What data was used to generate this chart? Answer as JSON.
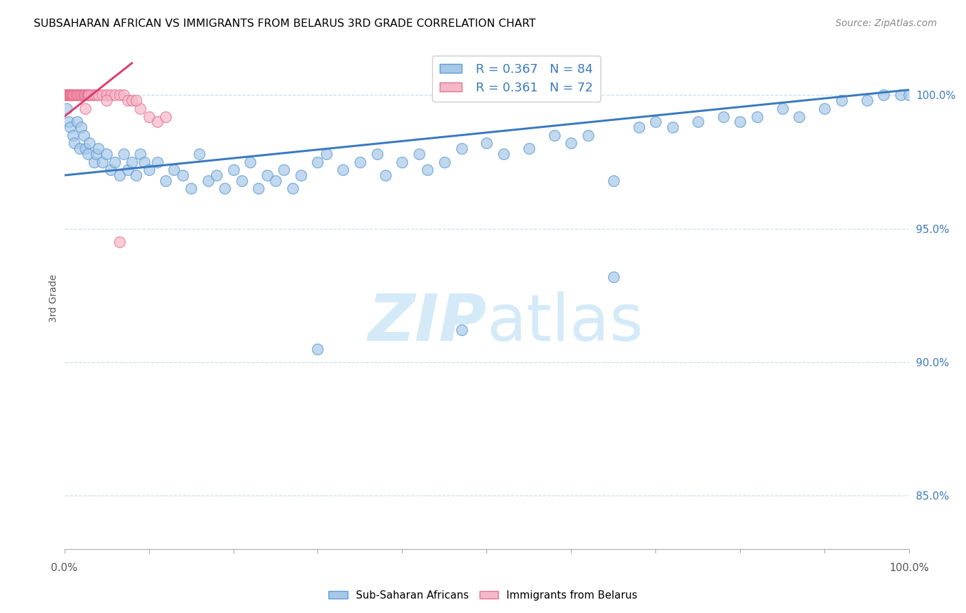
{
  "title": "SUBSAHARAN AFRICAN VS IMMIGRANTS FROM BELARUS 3RD GRADE CORRELATION CHART",
  "source": "Source: ZipAtlas.com",
  "ylabel": "3rd Grade",
  "xmin": 0.0,
  "xmax": 100.0,
  "ymin": 83.0,
  "ymax": 101.8,
  "ytick_positions": [
    85.0,
    90.0,
    95.0,
    100.0
  ],
  "ytick_labels": [
    "85.0%",
    "90.0%",
    "95.0%",
    "100.0%"
  ],
  "legend_r1": "R = 0.367",
  "legend_n1": "N = 84",
  "legend_r2": "R = 0.361",
  "legend_n2": "N = 72",
  "legend_label1": "Sub-Saharan Africans",
  "legend_label2": "Immigrants from Belarus",
  "blue_color": "#a8c8e8",
  "blue_edge_color": "#5b9bd5",
  "blue_line_color": "#3a7abf",
  "pink_color": "#f4b8c8",
  "pink_edge_color": "#e87090",
  "pink_line_color": "#d94070",
  "watermark_color": "#d0e8f8",
  "blue_line_x0": 0.0,
  "blue_line_y0": 97.0,
  "blue_line_x1": 100.0,
  "blue_line_y1": 100.2,
  "pink_line_x0": 0.0,
  "pink_line_y0": 99.2,
  "pink_line_x1": 8.0,
  "pink_line_y1": 101.2,
  "blue_scatter_x": [
    0.3,
    0.5,
    0.7,
    1.0,
    1.2,
    1.5,
    1.8,
    2.0,
    2.3,
    2.5,
    2.8,
    3.0,
    3.5,
    3.8,
    4.0,
    4.5,
    5.0,
    5.5,
    6.0,
    6.5,
    7.0,
    7.5,
    8.0,
    8.5,
    9.0,
    9.5,
    10.0,
    11.0,
    12.0,
    13.0,
    14.0,
    15.0,
    16.0,
    17.0,
    18.0,
    19.0,
    20.0,
    21.0,
    22.0,
    23.0,
    24.0,
    25.0,
    26.0,
    27.0,
    28.0,
    30.0,
    31.0,
    33.0,
    35.0,
    37.0,
    38.0,
    40.0,
    42.0,
    43.0,
    45.0,
    47.0,
    50.0,
    52.0,
    55.0,
    58.0,
    60.0,
    62.0,
    65.0,
    68.0,
    70.0,
    72.0,
    75.0,
    78.0,
    80.0,
    82.0,
    85.0,
    87.0,
    90.0,
    92.0,
    95.0,
    97.0,
    99.0,
    100.0,
    30.0,
    47.0,
    65.0
  ],
  "blue_scatter_y": [
    99.5,
    99.0,
    98.8,
    98.5,
    98.2,
    99.0,
    98.0,
    98.8,
    98.5,
    98.0,
    97.8,
    98.2,
    97.5,
    97.8,
    98.0,
    97.5,
    97.8,
    97.2,
    97.5,
    97.0,
    97.8,
    97.2,
    97.5,
    97.0,
    97.8,
    97.5,
    97.2,
    97.5,
    96.8,
    97.2,
    97.0,
    96.5,
    97.8,
    96.8,
    97.0,
    96.5,
    97.2,
    96.8,
    97.5,
    96.5,
    97.0,
    96.8,
    97.2,
    96.5,
    97.0,
    97.5,
    97.8,
    97.2,
    97.5,
    97.8,
    97.0,
    97.5,
    97.8,
    97.2,
    97.5,
    98.0,
    98.2,
    97.8,
    98.0,
    98.5,
    98.2,
    98.5,
    93.2,
    98.8,
    99.0,
    98.8,
    99.0,
    99.2,
    99.0,
    99.2,
    99.5,
    99.2,
    99.5,
    99.8,
    99.8,
    100.0,
    100.0,
    100.0,
    90.5,
    91.2,
    96.8
  ],
  "pink_scatter_x": [
    0.1,
    0.15,
    0.2,
    0.25,
    0.3,
    0.35,
    0.4,
    0.45,
    0.5,
    0.55,
    0.6,
    0.65,
    0.7,
    0.75,
    0.8,
    0.85,
    0.9,
    0.95,
    1.0,
    1.1,
    1.2,
    1.3,
    1.4,
    1.5,
    1.6,
    1.7,
    1.8,
    1.9,
    2.0,
    2.1,
    2.2,
    2.3,
    2.4,
    2.5,
    2.6,
    2.7,
    2.8,
    2.9,
    3.0,
    3.2,
    3.5,
    3.8,
    4.0,
    4.5,
    5.0,
    5.5,
    6.0,
    6.5,
    7.0,
    7.5,
    8.0,
    9.0,
    10.0,
    11.0,
    12.0,
    2.5,
    5.0,
    8.5,
    6.5
  ],
  "pink_scatter_y": [
    100.0,
    100.0,
    100.0,
    100.0,
    100.0,
    100.0,
    100.0,
    100.0,
    100.0,
    100.0,
    100.0,
    100.0,
    100.0,
    100.0,
    100.0,
    100.0,
    100.0,
    100.0,
    100.0,
    100.0,
    100.0,
    100.0,
    100.0,
    100.0,
    100.0,
    100.0,
    100.0,
    100.0,
    100.0,
    100.0,
    100.0,
    100.0,
    100.0,
    100.0,
    100.0,
    100.0,
    100.0,
    100.0,
    100.0,
    100.0,
    100.0,
    100.0,
    100.0,
    100.0,
    100.0,
    100.0,
    100.0,
    100.0,
    100.0,
    99.8,
    99.8,
    99.5,
    99.2,
    99.0,
    99.2,
    99.5,
    99.8,
    99.8,
    94.5
  ]
}
